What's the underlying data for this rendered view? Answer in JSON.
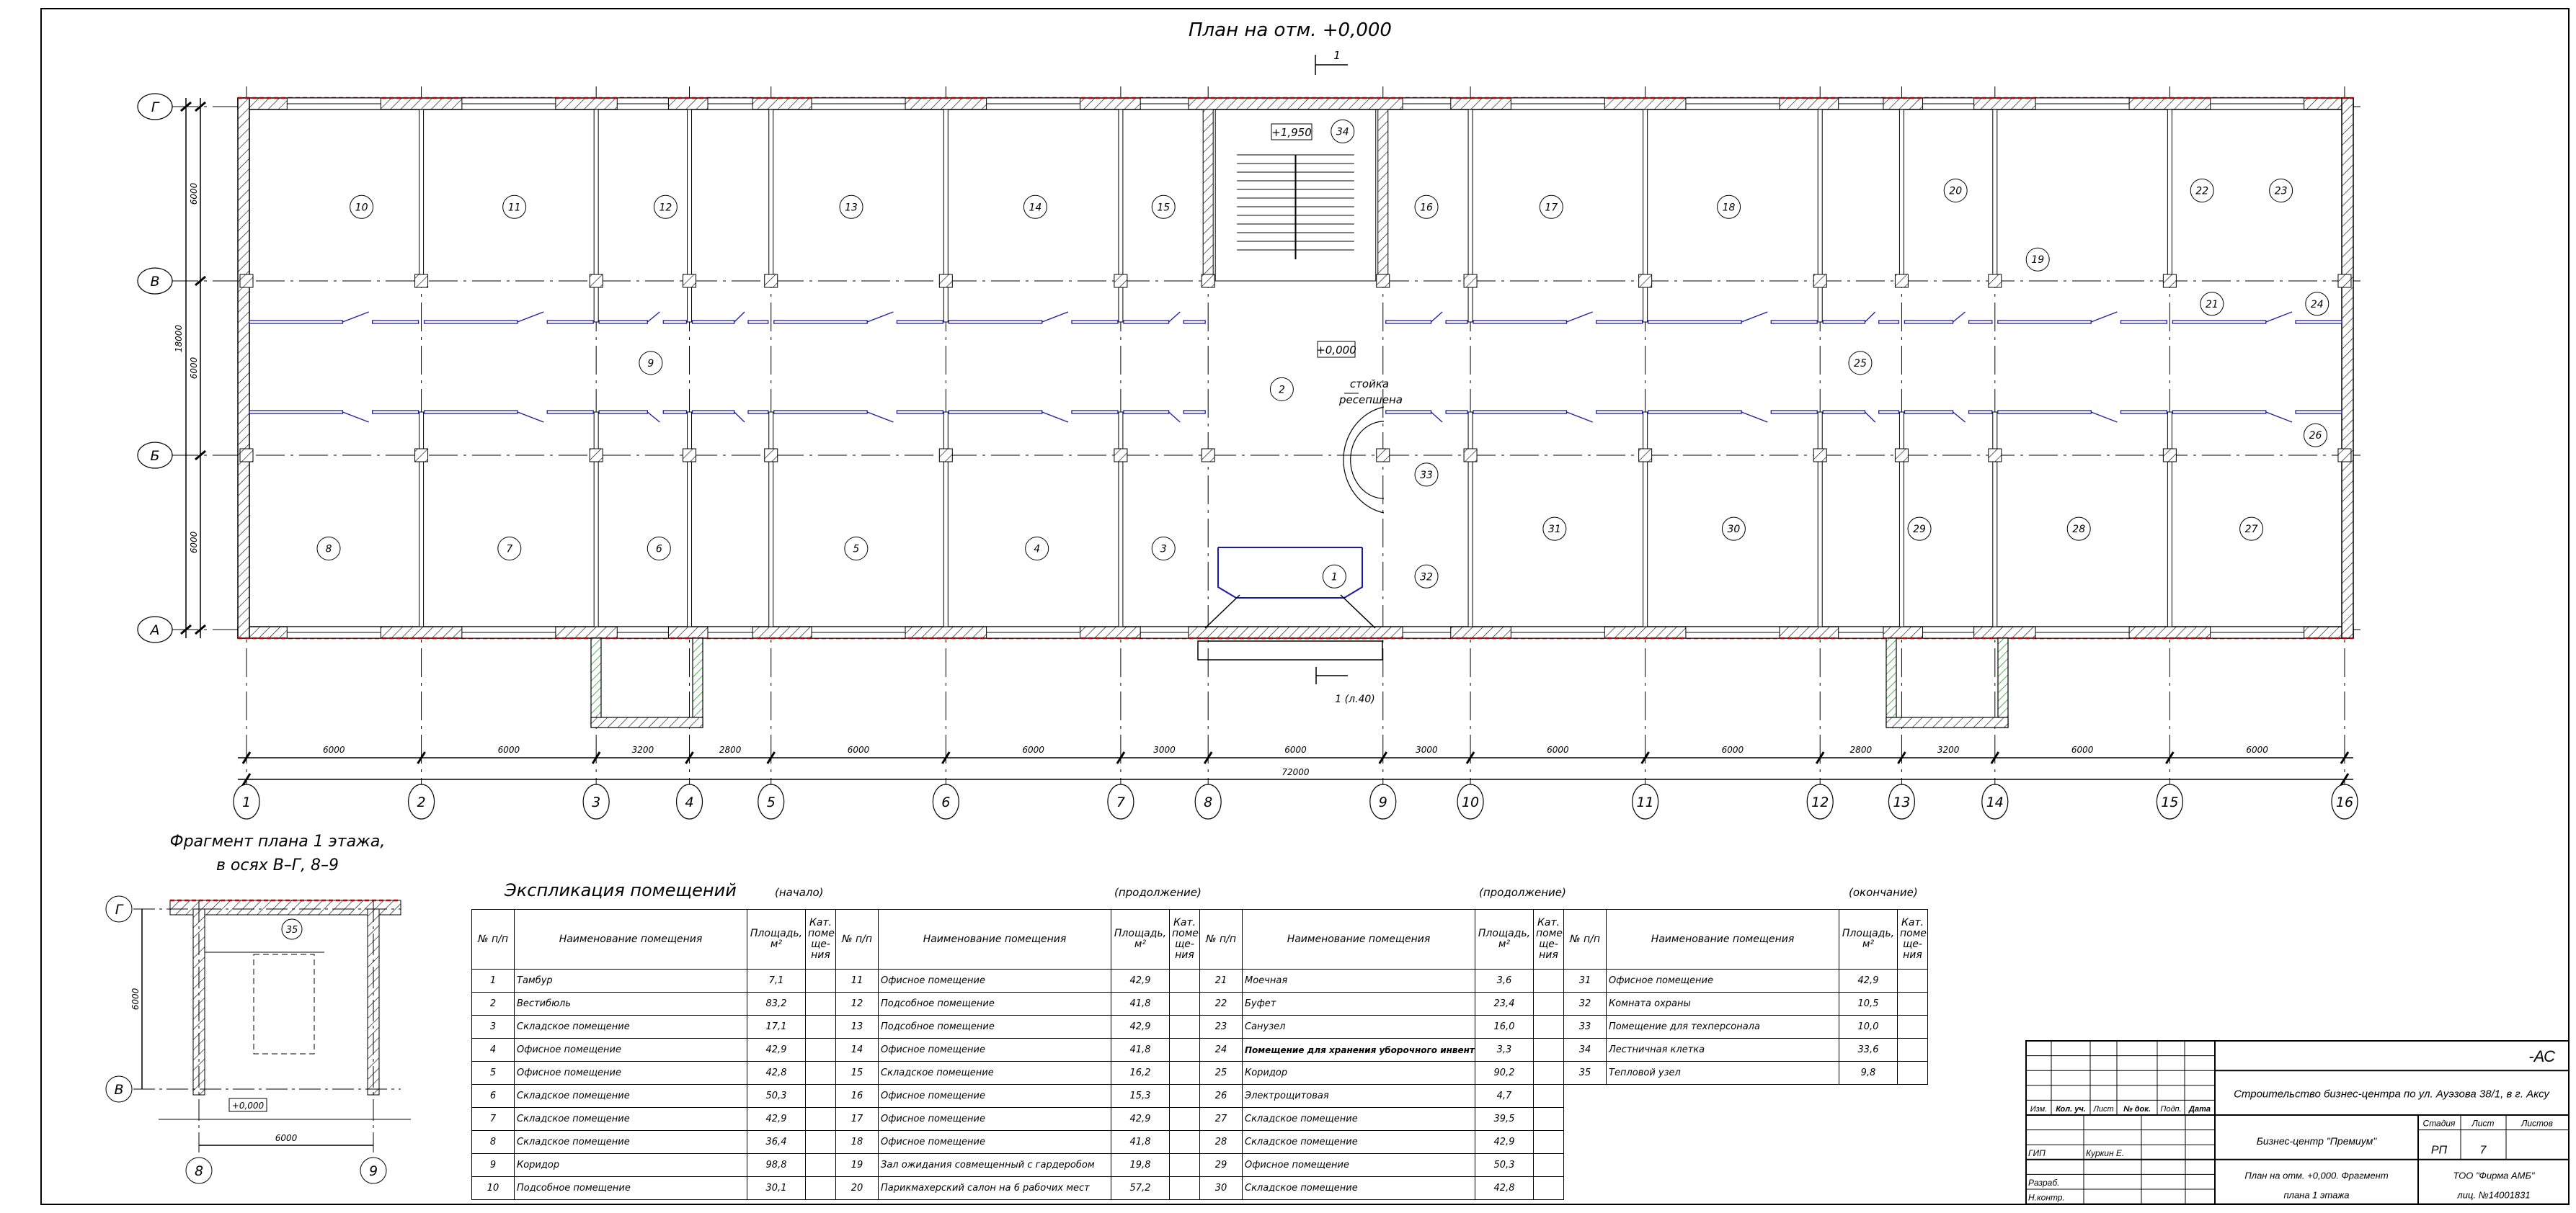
{
  "plan": {
    "title": "План на отм. +0,000",
    "section_mark_top": "1",
    "section_mark_bottom": "1 (л.40)",
    "level_mark_stair": "+1,950",
    "level_mark_main": "+0,000",
    "reception_label_1": "стойка",
    "reception_label_2": "ресепшена",
    "axes_x": [
      "1",
      "2",
      "3",
      "4",
      "5",
      "6",
      "7",
      "8",
      "9",
      "10",
      "11",
      "12",
      "13",
      "14",
      "15",
      "16"
    ],
    "axes_y": [
      "А",
      "Б",
      "В",
      "Г"
    ],
    "dims_x": [
      "6000",
      "6000",
      "3200",
      "2800",
      "6000",
      "6000",
      "3000",
      "6000",
      "3000",
      "6000",
      "6000",
      "2800",
      "3200",
      "6000",
      "6000"
    ],
    "dim_x_total": "72000",
    "dims_y": [
      "6000",
      "6000",
      "6000"
    ],
    "dim_y_total": "18000",
    "room_tags": [
      "10",
      "11",
      "12",
      "13",
      "14",
      "15",
      "34",
      "16",
      "17",
      "18",
      "20",
      "19",
      "22",
      "23",
      "21",
      "24",
      "25",
      "9",
      "2",
      "26",
      "8",
      "7",
      "6",
      "5",
      "4",
      "3",
      "1",
      "33",
      "32",
      "31",
      "30",
      "29",
      "28",
      "27"
    ]
  },
  "fragment": {
    "title_line1": "Фрагмент плана 1 этажа,",
    "title_line2": "в осях В–Г, 8–9",
    "room_tag": "35",
    "level_mark": "+0,000",
    "dim_x": "6000",
    "dim_y": "6000",
    "axes_x": [
      "8",
      "9"
    ],
    "axes_y": [
      "В",
      "Г"
    ]
  },
  "explication": {
    "title": "Экспликация помещений",
    "parts": [
      "(начало)",
      "(продолжение)",
      "(продолжение)",
      "(окончание)"
    ],
    "headers": {
      "num": "№ п/п",
      "name": "Наименование помещения",
      "area": "Площадь, м²",
      "category": "Кат. поме- ще- ния"
    },
    "rows": [
      {
        "n": "1",
        "name": "Тамбур",
        "area": "7,1"
      },
      {
        "n": "2",
        "name": "Вестибюль",
        "area": "83,2"
      },
      {
        "n": "3",
        "name": "Складское помещение",
        "area": "17,1"
      },
      {
        "n": "4",
        "name": "Офисное помещение",
        "area": "42,9"
      },
      {
        "n": "5",
        "name": "Офисное помещение",
        "area": "42,8"
      },
      {
        "n": "6",
        "name": "Складское помещение",
        "area": "50,3"
      },
      {
        "n": "7",
        "name": "Складское помещение",
        "area": "42,9"
      },
      {
        "n": "8",
        "name": "Складское помещение",
        "area": "36,4"
      },
      {
        "n": "9",
        "name": "Коридор",
        "area": "98,8"
      },
      {
        "n": "10",
        "name": "Подсобное помещение",
        "area": "30,1"
      },
      {
        "n": "11",
        "name": "Офисное помещение",
        "area": "42,9"
      },
      {
        "n": "12",
        "name": "Подсобное помещение",
        "area": "41,8"
      },
      {
        "n": "13",
        "name": "Подсобное помещение",
        "area": "42,9"
      },
      {
        "n": "14",
        "name": "Офисное помещение",
        "area": "41,8"
      },
      {
        "n": "15",
        "name": "Складское помещение",
        "area": "16,2"
      },
      {
        "n": "16",
        "name": "Офисное помещение",
        "area": "15,3"
      },
      {
        "n": "17",
        "name": "Офисное помещение",
        "area": "42,9"
      },
      {
        "n": "18",
        "name": "Офисное помещение",
        "area": "41,8"
      },
      {
        "n": "19",
        "name": "Зал ожидания совмещенный с гардеробом",
        "area": "19,8"
      },
      {
        "n": "20",
        "name": "Парикмахерский салон на 6 рабочих мест",
        "area": "57,2"
      },
      {
        "n": "21",
        "name": "Моечная",
        "area": "3,6"
      },
      {
        "n": "22",
        "name": "Буфет",
        "area": "23,4"
      },
      {
        "n": "23",
        "name": "Санузел",
        "area": "16,0"
      },
      {
        "n": "24",
        "name": "Помещение для хранения уборочного инвентаря",
        "area": "3,3"
      },
      {
        "n": "25",
        "name": "Коридор",
        "area": "90,2"
      },
      {
        "n": "26",
        "name": "Электрощитовая",
        "area": "4,7"
      },
      {
        "n": "27",
        "name": "Складское помещение",
        "area": "39,5"
      },
      {
        "n": "28",
        "name": "Складское помещение",
        "area": "42,9"
      },
      {
        "n": "29",
        "name": "Офисное помещение",
        "area": "50,3"
      },
      {
        "n": "30",
        "name": "Складское помещение",
        "area": "42,8"
      },
      {
        "n": "31",
        "name": "Офисное помещение",
        "area": "42,9"
      },
      {
        "n": "32",
        "name": "Комната охраны",
        "area": "10,5"
      },
      {
        "n": "33",
        "name": "Помещение для техперсонала",
        "area": "10,0"
      },
      {
        "n": "34",
        "name": "Лестничная клетка",
        "area": "33,6"
      },
      {
        "n": "35",
        "name": "Тепловой узел",
        "area": "9,8"
      }
    ]
  },
  "title_block": {
    "code": "-АС",
    "project": "Строительство бизнес-центра по ул. Ауэзова 38/1, в г. Аксу",
    "columns": [
      "Изм.",
      "Кол. уч.",
      "Лист",
      "№ док.",
      "Подп.",
      "Дата"
    ],
    "gip_role": "ГИП",
    "gip_name": "Куркин Е.",
    "developer_role": "Разраб.",
    "control_role": "Н.контр.",
    "building": "Бизнес-центр \"Премиум\"",
    "stage_header": "Стадия",
    "sheet_header": "Лист",
    "sheets_header": "Листов",
    "stage": "РП",
    "sheet": "7",
    "sheet_title_1": "План на отм. +0,000. Фрагмент",
    "sheet_title_2": "плана 1 этажа",
    "firm_1": "ТОО \"Фирма АМБ\"",
    "firm_2": "лиц. №14001831"
  },
  "colors": {
    "partition": "#1a1aa8",
    "insulation": "#c00000",
    "stone": "#1f9a1f",
    "lines": "#000000"
  }
}
